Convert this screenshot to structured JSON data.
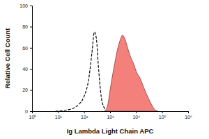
{
  "chart_data": {
    "type": "line",
    "xlabel": "Ig Lambda Light Chain APC",
    "ylabel": "Relative Cell Count",
    "log": "x",
    "x": [
      8,
      20,
      40,
      60,
      100,
      150,
      200,
      250,
      300,
      350,
      450,
      600,
      800,
      1000,
      1500,
      2000,
      2500,
      3000,
      3500,
      4000,
      5000,
      6000,
      8000,
      10000,
      15000,
      20000,
      30000,
      40000,
      50000,
      70000
    ],
    "series": [
      {
        "type": "line",
        "line_style": "dashed",
        "color": "#000000",
        "values": [
          0,
          1,
          3,
          6,
          14,
          30,
          55,
          75,
          68,
          45,
          15,
          3,
          0,
          null,
          null,
          null,
          null,
          null,
          null,
          null,
          null,
          null,
          null,
          null,
          null,
          null,
          null,
          null,
          null,
          null
        ]
      },
      {
        "type": "area",
        "color": "#f4807c",
        "values": [
          null,
          null,
          null,
          null,
          null,
          null,
          null,
          null,
          null,
          null,
          null,
          0,
          5,
          20,
          45,
          60,
          68,
          72,
          70,
          66,
          58,
          52,
          45,
          38,
          30,
          22,
          12,
          6,
          2,
          0
        ]
      }
    ],
    "xlim": [
      1,
      1000000
    ],
    "xticks": [
      {
        "value": 1,
        "label": "10⁰"
      },
      {
        "value": 10,
        "label": "10¹"
      },
      {
        "value": 100,
        "label": "10²"
      },
      {
        "value": 1000,
        "label": "10³"
      },
      {
        "value": 10000,
        "label": "10⁴"
      },
      {
        "value": 100000,
        "label": "10⁵"
      },
      {
        "value": 1000000,
        "label": "10⁶"
      }
    ],
    "ylim": [
      0,
      100
    ],
    "yticks": [
      0,
      20,
      40,
      60,
      80,
      100
    ]
  }
}
